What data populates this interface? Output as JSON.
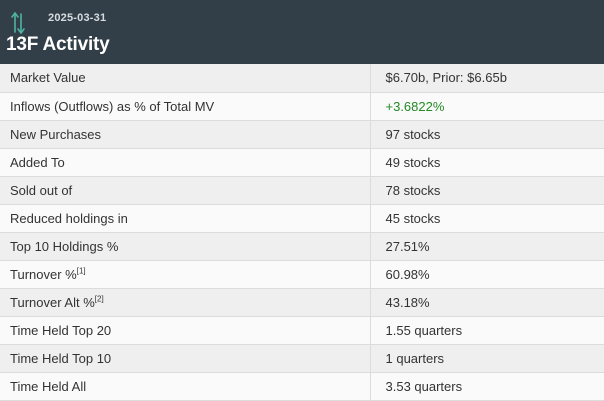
{
  "header": {
    "date": "2025-03-31",
    "title": "13F Activity",
    "icon": "up-down-arrows-icon",
    "icon_color": "#4fb3a3",
    "background": "#333f48"
  },
  "rows": [
    {
      "label": "Market Value",
      "sup": "",
      "value": "$6.70b, Prior: $6.65b"
    },
    {
      "label": "Inflows (Outflows) as % of Total MV",
      "sup": "",
      "value": "+3.6822%",
      "value_color": "#228b22"
    },
    {
      "label": "New Purchases",
      "sup": "",
      "value": "97 stocks"
    },
    {
      "label": "Added To",
      "sup": "",
      "value": "49 stocks"
    },
    {
      "label": "Sold out of",
      "sup": "",
      "value": "78 stocks"
    },
    {
      "label": "Reduced holdings in",
      "sup": "",
      "value": "45 stocks"
    },
    {
      "label": "Top 10 Holdings %",
      "sup": "",
      "value": "27.51%"
    },
    {
      "label": "Turnover %",
      "sup": "[1]",
      "value": "60.98%"
    },
    {
      "label": "Turnover Alt %",
      "sup": "[2]",
      "value": "43.18%"
    },
    {
      "label": "Time Held Top 20",
      "sup": "",
      "value": "1.55 quarters"
    },
    {
      "label": "Time Held Top 10",
      "sup": "",
      "value": "1 quarters"
    },
    {
      "label": "Time Held All",
      "sup": "",
      "value": "3.53 quarters"
    }
  ]
}
